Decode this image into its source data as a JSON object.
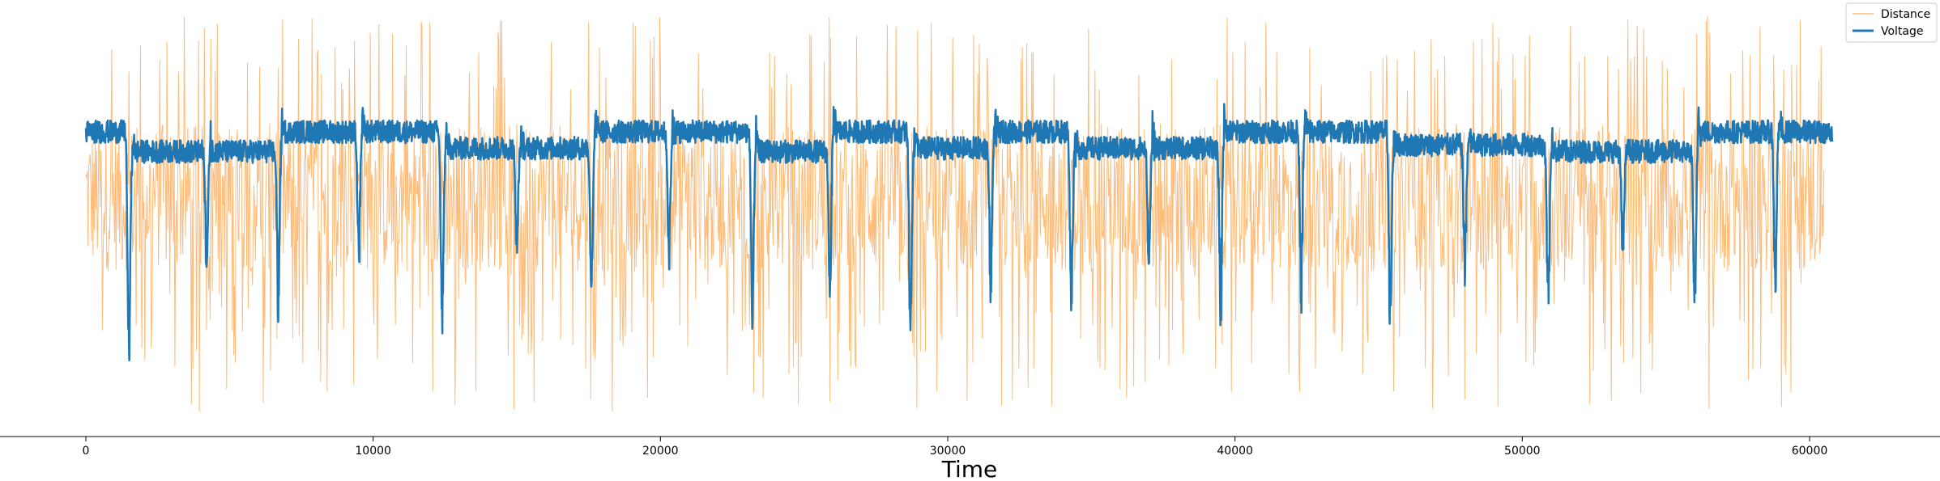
{
  "chart_data": {
    "type": "line",
    "xlabel": "Time",
    "ylabel": "",
    "xlim": [
      -3000,
      64000
    ],
    "ylim": [
      -1.3,
      1.25
    ],
    "x_ticks": [
      0,
      10000,
      20000,
      30000,
      40000,
      50000,
      60000
    ],
    "x_tick_labels": [
      "0",
      "10000",
      "20000",
      "30000",
      "40000",
      "50000",
      "60000"
    ],
    "grid": false,
    "y_axis_visible": false,
    "legend": {
      "placement": "top-right",
      "entries": [
        "Distance",
        "Voltage"
      ]
    },
    "series": [
      {
        "name": "Distance",
        "color": "#ffbb78",
        "x_range": [
          0,
          60500
        ],
        "approx_mean": 0.1,
        "approx_max": 1.2,
        "approx_min": -1.2
      },
      {
        "name": "Voltage",
        "color": "#1f77b4",
        "x_range": [
          0,
          60800
        ],
        "levels": [
          0.5,
          0.4
        ],
        "segments": [
          {
            "x": [
              0,
              1500
            ],
            "level": 0.5
          },
          {
            "x": [
              1500,
              6700
            ],
            "level": 0.38
          },
          {
            "x": [
              6700,
              9500
            ],
            "level": 0.5
          },
          {
            "x": [
              9500,
              12400
            ],
            "level": 0.5
          },
          {
            "x": [
              12400,
              17600
            ],
            "level": 0.4
          },
          {
            "x": [
              17600,
              20300
            ],
            "level": 0.5
          },
          {
            "x": [
              20300,
              23200
            ],
            "level": 0.5
          },
          {
            "x": [
              23200,
              25900
            ],
            "level": 0.38
          },
          {
            "x": [
              25900,
              28700
            ],
            "level": 0.5
          },
          {
            "x": [
              28700,
              31500
            ],
            "level": 0.4
          },
          {
            "x": [
              31500,
              34300
            ],
            "level": 0.5
          },
          {
            "x": [
              34300,
              39500
            ],
            "level": 0.4
          },
          {
            "x": [
              39500,
              45400
            ],
            "level": 0.5
          },
          {
            "x": [
              45400,
              50900
            ],
            "level": 0.42
          },
          {
            "x": [
              50900,
              56000
            ],
            "level": 0.38
          },
          {
            "x": [
              56000,
              60800
            ],
            "level": 0.5
          }
        ],
        "dips": [
          {
            "x": 1500,
            "min": -0.95
          },
          {
            "x": 4200,
            "min": -0.4
          },
          {
            "x": 6700,
            "min": -0.65
          },
          {
            "x": 9500,
            "min": -0.3
          },
          {
            "x": 12400,
            "min": -0.8
          },
          {
            "x": 15000,
            "min": -0.35
          },
          {
            "x": 17600,
            "min": -0.65
          },
          {
            "x": 20300,
            "min": -0.35
          },
          {
            "x": 23200,
            "min": -0.75
          },
          {
            "x": 25900,
            "min": -0.55
          },
          {
            "x": 28700,
            "min": -1.0
          },
          {
            "x": 31500,
            "min": -0.6
          },
          {
            "x": 34300,
            "min": -0.65
          },
          {
            "x": 37000,
            "min": -0.35
          },
          {
            "x": 39500,
            "min": -0.7
          },
          {
            "x": 42300,
            "min": -0.6
          },
          {
            "x": 45400,
            "min": -0.75
          },
          {
            "x": 48000,
            "min": -0.45
          },
          {
            "x": 50900,
            "min": -0.75
          },
          {
            "x": 53500,
            "min": -0.3
          },
          {
            "x": 56000,
            "min": -0.65
          },
          {
            "x": 58800,
            "min": -0.55
          }
        ]
      }
    ]
  }
}
